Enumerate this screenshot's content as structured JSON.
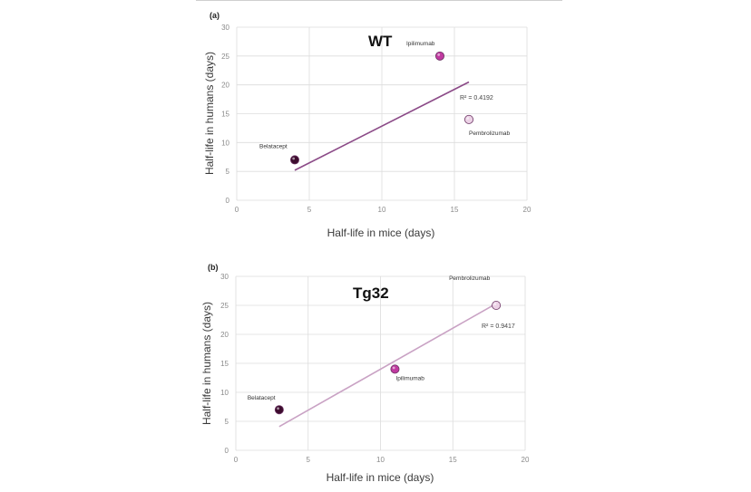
{
  "chart_data": [
    {
      "type": "scatter",
      "panel": "(a)",
      "title": "WT",
      "xlabel": "Half-life in mice (days)",
      "ylabel": "Half-life in humans (days)",
      "xlim": [
        0,
        20
      ],
      "ylim": [
        0,
        30
      ],
      "x_ticks": [
        "0",
        "5",
        "10",
        "15",
        "20"
      ],
      "y_ticks": [
        "0",
        "5",
        "10",
        "15",
        "20",
        "25",
        "30"
      ],
      "grid": true,
      "points": [
        {
          "label": "Belatacept",
          "x": 4,
          "y": 7,
          "color": "#3d0c2e"
        },
        {
          "label": "Ipilimumab",
          "x": 14,
          "y": 25,
          "color": "#c03aa0"
        },
        {
          "label": "Pembrolizumab",
          "x": 16,
          "y": 14,
          "color": "#ecd2e6"
        }
      ],
      "trendline": {
        "x": [
          4,
          16
        ],
        "y": [
          5.2,
          20.5
        ],
        "color": "#8b4a87",
        "r2_text": "R² = 0.4192"
      }
    },
    {
      "type": "scatter",
      "panel": "(b)",
      "title": "Tg32",
      "xlabel": "Half-life in mice (days)",
      "ylabel": "Half-life in humans (days)",
      "xlim": [
        0,
        20
      ],
      "ylim": [
        0,
        30
      ],
      "x_ticks": [
        "0",
        "5",
        "10",
        "15",
        "20"
      ],
      "y_ticks": [
        "0",
        "5",
        "10",
        "15",
        "20",
        "25",
        "30"
      ],
      "grid": true,
      "points": [
        {
          "label": "Belatacept",
          "x": 3,
          "y": 7,
          "color": "#3d0c2e"
        },
        {
          "label": "Ipilimumab",
          "x": 11,
          "y": 14,
          "color": "#c03aa0"
        },
        {
          "label": "Pembrolizumab",
          "x": 18,
          "y": 25,
          "color": "#ecd2e6"
        }
      ],
      "trendline": {
        "x": [
          3,
          18
        ],
        "y": [
          4.1,
          25.3
        ],
        "color": "#c9a2c4",
        "r2_text": "R² = 0.9417"
      }
    }
  ]
}
